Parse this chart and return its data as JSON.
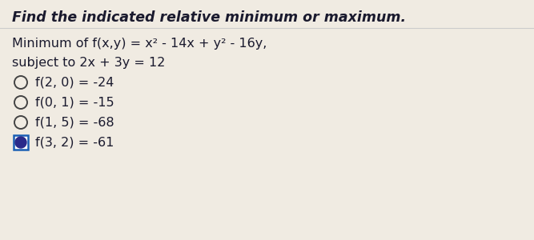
{
  "title": "Find the indicated relative minimum or maximum.",
  "title_fontsize": 12.5,
  "title_bold": true,
  "title_italic": true,
  "problem_line1": "Minimum of f(x,y) = x² - 14x + y² - 16y,",
  "problem_line2": "subject to 2x + 3y = 12",
  "options": [
    {
      "label": "f(2, 0) = -24",
      "selected": false
    },
    {
      "label": "f(0, 1) = -15",
      "selected": false
    },
    {
      "label": "f(1, 5) = -68",
      "selected": false
    },
    {
      "label": "f(3, 2) = -61",
      "selected": true
    }
  ],
  "bg_color": "#f0ebe2",
  "text_color": "#1a1a2e",
  "option_fontsize": 11.5,
  "problem_fontsize": 11.5,
  "selected_fill": "#2a2a8a",
  "selected_border": "#1a5fb4",
  "unselected_border": "#444444",
  "separator_color": "#cccccc"
}
